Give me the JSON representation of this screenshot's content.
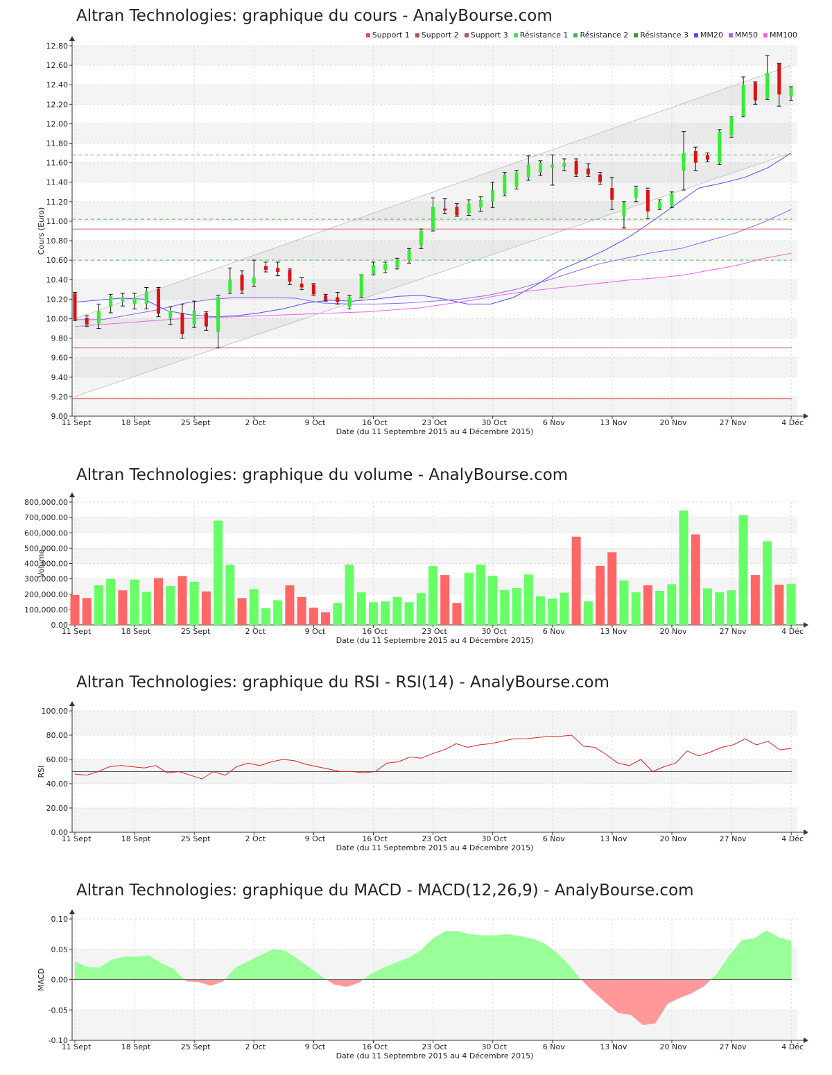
{
  "chart_data": [
    {
      "id": "price",
      "type": "candlestick",
      "title": "Altran Technologies: graphique du cours - AnalyBourse.com",
      "xlabel": "Date (du 11 Septembre 2015 au 4 Décembre 2015)",
      "ylabel": "Cours (Euro)",
      "ylim": [
        9.0,
        12.8
      ],
      "yticks": [
        "9.00",
        "9.20",
        "9.40",
        "9.60",
        "9.80",
        "10.00",
        "10.20",
        "10.40",
        "10.60",
        "10.80",
        "11.00",
        "11.20",
        "11.40",
        "11.60",
        "11.80",
        "12.00",
        "12.20",
        "12.40",
        "12.60",
        "12.80"
      ],
      "xticks": [
        "11 Sept",
        "18 Sept",
        "25 Sept",
        "2 Oct",
        "9 Oct",
        "16 Oct",
        "23 Oct",
        "30 Oct",
        "6 Nov",
        "13 Nov",
        "20 Nov",
        "27 Nov",
        "4 Déc"
      ],
      "legend": [
        {
          "name": "Support 1",
          "color": "#e05050"
        },
        {
          "name": "Support 2",
          "color": "#b05050"
        },
        {
          "name": "Support 3",
          "color": "#a06060"
        },
        {
          "name": "Résistance 1",
          "color": "#50dd50"
        },
        {
          "name": "Résistance 2",
          "color": "#50b050"
        },
        {
          "name": "Résistance 3",
          "color": "#409040"
        },
        {
          "name": "MM20",
          "color": "#5050ff"
        },
        {
          "name": "MM50",
          "color": "#9a60ff"
        },
        {
          "name": "MM100",
          "color": "#ee60ee"
        }
      ],
      "supports": [
        10.92,
        9.7,
        9.18
      ],
      "resistances": [
        11.68,
        11.02,
        10.6
      ],
      "channel": {
        "lower": [
          [
            0,
            9.2
          ],
          [
            60,
            11.7
          ]
        ],
        "upper": [
          [
            0,
            10.0
          ],
          [
            60,
            12.6
          ]
        ]
      },
      "candles": [
        {
          "o": 10.26,
          "h": 10.27,
          "l": 9.98,
          "c": 9.99
        },
        {
          "o": 10.01,
          "h": 10.03,
          "l": 9.92,
          "c": 9.94
        },
        {
          "o": 9.95,
          "h": 10.15,
          "l": 9.9,
          "c": 10.08
        },
        {
          "o": 10.12,
          "h": 10.25,
          "l": 10.06,
          "c": 10.23
        },
        {
          "o": 10.18,
          "h": 10.26,
          "l": 10.13,
          "c": 10.22
        },
        {
          "o": 10.15,
          "h": 10.26,
          "l": 10.1,
          "c": 10.21
        },
        {
          "o": 10.15,
          "h": 10.32,
          "l": 10.1,
          "c": 10.28
        },
        {
          "o": 10.31,
          "h": 10.32,
          "l": 10.02,
          "c": 10.05
        },
        {
          "o": 10.0,
          "h": 10.12,
          "l": 9.94,
          "c": 10.08
        },
        {
          "o": 10.06,
          "h": 10.15,
          "l": 9.8,
          "c": 9.84
        },
        {
          "o": 9.94,
          "h": 10.18,
          "l": 9.91,
          "c": 10.08
        },
        {
          "o": 10.06,
          "h": 10.07,
          "l": 9.88,
          "c": 9.92
        },
        {
          "o": 9.86,
          "h": 10.24,
          "l": 9.7,
          "c": 10.22
        },
        {
          "o": 10.28,
          "h": 10.52,
          "l": 10.26,
          "c": 10.4
        },
        {
          "o": 10.45,
          "h": 10.49,
          "l": 10.26,
          "c": 10.29
        },
        {
          "o": 10.36,
          "h": 10.6,
          "l": 10.33,
          "c": 10.42
        },
        {
          "o": 10.54,
          "h": 10.58,
          "l": 10.48,
          "c": 10.5
        },
        {
          "o": 10.52,
          "h": 10.58,
          "l": 10.44,
          "c": 10.48
        },
        {
          "o": 10.5,
          "h": 10.51,
          "l": 10.35,
          "c": 10.38
        },
        {
          "o": 10.36,
          "h": 10.42,
          "l": 10.3,
          "c": 10.32
        },
        {
          "o": 10.35,
          "h": 10.36,
          "l": 10.24,
          "c": 10.25
        },
        {
          "o": 10.24,
          "h": 10.25,
          "l": 10.18,
          "c": 10.19
        },
        {
          "o": 10.22,
          "h": 10.27,
          "l": 10.15,
          "c": 10.17
        },
        {
          "o": 10.12,
          "h": 10.24,
          "l": 10.1,
          "c": 10.22
        },
        {
          "o": 10.23,
          "h": 10.45,
          "l": 10.22,
          "c": 10.45
        },
        {
          "o": 10.46,
          "h": 10.58,
          "l": 10.45,
          "c": 10.55
        },
        {
          "o": 10.5,
          "h": 10.58,
          "l": 10.47,
          "c": 10.56
        },
        {
          "o": 10.53,
          "h": 10.62,
          "l": 10.51,
          "c": 10.6
        },
        {
          "o": 10.6,
          "h": 10.72,
          "l": 10.57,
          "c": 10.7
        },
        {
          "o": 10.75,
          "h": 10.92,
          "l": 10.72,
          "c": 10.9
        },
        {
          "o": 10.92,
          "h": 11.24,
          "l": 10.9,
          "c": 11.15
        },
        {
          "o": 11.13,
          "h": 11.23,
          "l": 11.08,
          "c": 11.11
        },
        {
          "o": 11.15,
          "h": 11.18,
          "l": 11.05,
          "c": 11.06
        },
        {
          "o": 11.08,
          "h": 11.22,
          "l": 11.06,
          "c": 11.18
        },
        {
          "o": 11.14,
          "h": 11.25,
          "l": 11.1,
          "c": 11.22
        },
        {
          "o": 11.2,
          "h": 11.4,
          "l": 11.14,
          "c": 11.32
        },
        {
          "o": 11.28,
          "h": 11.5,
          "l": 11.26,
          "c": 11.48
        },
        {
          "o": 11.35,
          "h": 11.52,
          "l": 11.33,
          "c": 11.5
        },
        {
          "o": 11.45,
          "h": 11.67,
          "l": 11.42,
          "c": 11.58
        },
        {
          "o": 11.5,
          "h": 11.62,
          "l": 11.47,
          "c": 11.6
        },
        {
          "o": 11.55,
          "h": 11.68,
          "l": 11.37,
          "c": 11.58
        },
        {
          "o": 11.56,
          "h": 11.64,
          "l": 11.52,
          "c": 11.6
        },
        {
          "o": 11.62,
          "h": 11.64,
          "l": 11.46,
          "c": 11.48
        },
        {
          "o": 11.54,
          "h": 11.59,
          "l": 11.46,
          "c": 11.48
        },
        {
          "o": 11.48,
          "h": 11.5,
          "l": 11.38,
          "c": 11.4
        },
        {
          "o": 11.34,
          "h": 11.45,
          "l": 11.12,
          "c": 11.22
        },
        {
          "o": 11.05,
          "h": 11.2,
          "l": 10.93,
          "c": 11.18
        },
        {
          "o": 11.24,
          "h": 11.36,
          "l": 11.2,
          "c": 11.34
        },
        {
          "o": 11.32,
          "h": 11.34,
          "l": 11.03,
          "c": 11.1
        },
        {
          "o": 11.13,
          "h": 11.22,
          "l": 11.12,
          "c": 11.2
        },
        {
          "o": 11.16,
          "h": 11.3,
          "l": 11.14,
          "c": 11.28
        },
        {
          "o": 11.52,
          "h": 11.92,
          "l": 11.32,
          "c": 11.7
        },
        {
          "o": 11.72,
          "h": 11.76,
          "l": 11.52,
          "c": 11.6
        },
        {
          "o": 11.68,
          "h": 11.7,
          "l": 11.61,
          "c": 11.63
        },
        {
          "o": 11.6,
          "h": 11.94,
          "l": 11.58,
          "c": 11.92
        },
        {
          "o": 11.88,
          "h": 12.07,
          "l": 11.86,
          "c": 12.06
        },
        {
          "o": 12.08,
          "h": 12.48,
          "l": 12.07,
          "c": 12.4
        },
        {
          "o": 12.42,
          "h": 12.43,
          "l": 12.2,
          "c": 12.24
        },
        {
          "o": 12.26,
          "h": 12.7,
          "l": 12.25,
          "c": 12.52
        },
        {
          "o": 12.62,
          "h": 12.62,
          "l": 12.18,
          "c": 12.3
        },
        {
          "o": 12.28,
          "h": 12.38,
          "l": 12.24,
          "c": 12.37
        }
      ],
      "ma": [
        {
          "name": "MM20",
          "color": "#5050ff",
          "values": [
            10.17,
            10.19,
            10.21,
            10.2,
            10.08,
            10.04,
            10.02,
            10.03,
            10.06,
            10.1,
            10.16,
            10.19,
            10.18,
            10.2,
            10.23,
            10.24,
            10.2,
            10.15,
            10.15,
            10.22,
            10.35,
            10.5,
            10.6,
            10.71,
            10.84,
            11.0,
            11.17,
            11.34,
            11.39,
            11.45,
            11.55,
            11.7
          ]
        },
        {
          "name": "MM50",
          "color": "#9a60ff",
          "values": [
            9.99,
            9.99,
            10.04,
            10.09,
            10.16,
            10.2,
            10.22,
            10.22,
            10.21,
            10.16,
            10.15,
            10.15,
            10.16,
            10.18,
            10.2,
            10.24,
            10.3,
            10.38,
            10.47,
            10.56,
            10.62,
            10.68,
            10.72,
            10.8,
            10.88,
            10.99,
            11.12
          ]
        },
        {
          "name": "MM100",
          "color": "#ee60ee",
          "values": [
            9.92,
            9.94,
            9.96,
            9.98,
            10.0,
            10.01,
            10.02,
            10.03,
            10.04,
            10.05,
            10.06,
            10.07,
            10.09,
            10.11,
            10.15,
            10.19,
            10.24,
            10.28,
            10.31,
            10.34,
            10.37,
            10.4,
            10.42,
            10.45,
            10.5,
            10.55,
            10.62,
            10.67
          ]
        }
      ]
    },
    {
      "id": "volume",
      "type": "bar",
      "title": "Altran Technologies: graphique du volume - AnalyBourse.com",
      "xlabel": "Date (du 11 Septembre 2015 au 4 Décembre 2015)",
      "ylabel": "Volume",
      "ylim": [
        0,
        800000
      ],
      "yticks": [
        "0.00",
        "100,000.00",
        "200,000.00",
        "300,000.00",
        "400,000.00",
        "500,000.00",
        "600,000.00",
        "700,000.00",
        "800,000.00"
      ],
      "xticks": [
        "11 Sept",
        "18 Sept",
        "25 Sept",
        "2 Oct",
        "9 Oct",
        "16 Oct",
        "23 Oct",
        "30 Oct",
        "6 Nov",
        "13 Nov",
        "20 Nov",
        "27 Nov",
        "4 Déc"
      ],
      "values": [
        195000,
        175000,
        258000,
        300000,
        225000,
        295000,
        215000,
        305000,
        253000,
        318000,
        280000,
        218000,
        680000,
        393000,
        175000,
        233000,
        108000,
        160000,
        258000,
        182000,
        112000,
        82000,
        143000,
        393000,
        212000,
        148000,
        153000,
        182000,
        148000,
        207000,
        383000,
        325000,
        143000,
        340000,
        393000,
        320000,
        228000,
        240000,
        328000,
        187000,
        172000,
        210000,
        575000,
        153000,
        385000,
        473000,
        290000,
        212000,
        258000,
        222000,
        265000,
        745000,
        590000,
        238000,
        212000,
        225000,
        715000,
        325000,
        545000,
        262000,
        268000
      ],
      "up": [
        0,
        0,
        1,
        1,
        0,
        1,
        1,
        0,
        1,
        0,
        1,
        0,
        1,
        1,
        0,
        1,
        1,
        1,
        0,
        0,
        0,
        0,
        1,
        1,
        1,
        1,
        1,
        1,
        1,
        1,
        1,
        0,
        0,
        1,
        1,
        1,
        1,
        1,
        1,
        1,
        1,
        1,
        0,
        1,
        0,
        0,
        1,
        1,
        0,
        1,
        1,
        1,
        0,
        1,
        1,
        1,
        1,
        0,
        1,
        0,
        1
      ]
    },
    {
      "id": "rsi",
      "type": "line",
      "title": "Altran Technologies: graphique du RSI - RSI(14) - AnalyBourse.com",
      "xlabel": "Date (du 11 Septembre 2015 au 4 Décembre 2015)",
      "ylabel": "RSI",
      "ylim": [
        0,
        100
      ],
      "yticks": [
        "0.00",
        "20.00",
        "40.00",
        "60.00",
        "80.00",
        "100.00"
      ],
      "xticks": [
        "11 Sept",
        "18 Sept",
        "25 Sept",
        "2 Oct",
        "9 Oct",
        "16 Oct",
        "23 Oct",
        "30 Oct",
        "6 Nov",
        "13 Nov",
        "20 Nov",
        "27 Nov",
        "4 Déc"
      ],
      "reference": 50,
      "values": [
        48,
        47,
        50,
        54,
        55,
        54,
        53,
        55,
        49,
        50,
        47,
        44,
        50,
        47,
        54,
        57,
        55,
        58,
        60,
        59,
        56,
        54,
        52,
        50,
        50,
        49,
        50,
        57,
        58,
        62,
        61,
        65,
        68,
        73,
        70,
        72,
        73,
        75,
        77,
        77,
        78,
        79,
        79,
        80,
        71,
        70,
        64,
        57,
        55,
        60,
        50,
        54,
        57,
        67,
        63,
        66,
        70,
        72,
        77,
        72,
        75,
        68,
        69
      ]
    },
    {
      "id": "macd",
      "type": "area",
      "title": "Altran Technologies: graphique du MACD - MACD(12,26,9) - AnalyBourse.com",
      "xlabel": "Date (du 11 Septembre 2015 au 4 Décembre 2015)",
      "ylabel": "MACD",
      "ylim": [
        -0.1,
        0.1
      ],
      "yticks": [
        "-0.10",
        "-0.05",
        "0.00",
        "0.05",
        "0.10"
      ],
      "xticks": [
        "11 Sept",
        "18 Sept",
        "25 Sept",
        "2 Oct",
        "9 Oct",
        "16 Oct",
        "23 Oct",
        "30 Oct",
        "6 Nov",
        "13 Nov",
        "20 Nov",
        "27 Nov",
        "4 Déc"
      ],
      "values": [
        0.03,
        0.021,
        0.02,
        0.033,
        0.038,
        0.038,
        0.04,
        0.027,
        0.018,
        -0.003,
        -0.004,
        -0.01,
        -0.003,
        0.02,
        0.03,
        0.04,
        0.05,
        0.048,
        0.035,
        0.02,
        0.005,
        -0.008,
        -0.012,
        -0.005,
        0.01,
        0.02,
        0.028,
        0.036,
        0.048,
        0.068,
        0.08,
        0.08,
        0.075,
        0.073,
        0.073,
        0.075,
        0.072,
        0.068,
        0.06,
        0.045,
        0.025,
        0.0,
        -0.02,
        -0.038,
        -0.055,
        -0.058,
        -0.075,
        -0.072,
        -0.04,
        -0.03,
        -0.022,
        -0.01,
        0.01,
        0.04,
        0.065,
        0.068,
        0.081,
        0.07,
        0.064
      ]
    }
  ]
}
